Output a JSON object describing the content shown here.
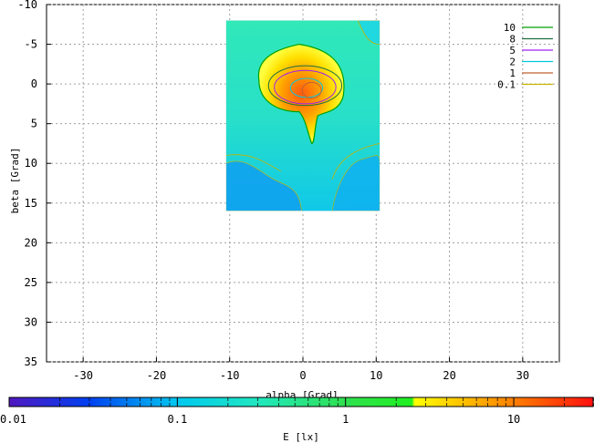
{
  "chart_data": {
    "type": "heatmap",
    "xlabel": "alpha [Grad]",
    "ylabel": "beta [Grad]",
    "xlim": [
      -35,
      35
    ],
    "ylim": [
      -10,
      35
    ],
    "y_inverted": true,
    "grid": true,
    "x_ticks": [
      "-30",
      "-20",
      "-10",
      "0",
      "10",
      "20",
      "30"
    ],
    "x_tick_values": [
      -30,
      -20,
      -10,
      0,
      10,
      20,
      30
    ],
    "y_ticks": [
      "-10",
      "-5",
      "0",
      "5",
      "10",
      "15",
      "20",
      "25",
      "30",
      "35"
    ],
    "y_tick_values": [
      -10,
      -5,
      0,
      5,
      10,
      15,
      20,
      25,
      30,
      35
    ],
    "heatmap_extent": {
      "x": [
        -10.5,
        10.5
      ],
      "y": [
        -8,
        16
      ]
    },
    "legend_position": "top-right",
    "contour_legend": [
      {
        "label": "10",
        "color": "#00a000"
      },
      {
        "label": "8",
        "color": "#207040"
      },
      {
        "label": "5",
        "color": "#a020f0"
      },
      {
        "label": "2",
        "color": "#00c8e0"
      },
      {
        "label": "1",
        "color": "#c06030"
      },
      {
        "label": "0.1",
        "color": "#c8b400"
      }
    ],
    "colorbar": {
      "label": "E [lx]",
      "scale": "log",
      "range": [
        0.01,
        30
      ],
      "ticks": [
        "0.01",
        "0.1",
        "1",
        "10"
      ],
      "tick_values": [
        0.01,
        0.1,
        1,
        10
      ],
      "color_stops": [
        {
          "value": 0.01,
          "color": "#5018c0"
        },
        {
          "value": 0.03,
          "color": "#0040f0"
        },
        {
          "value": 0.1,
          "color": "#00c8f0"
        },
        {
          "value": 0.3,
          "color": "#20e8c0"
        },
        {
          "value": 1,
          "color": "#30e050"
        },
        {
          "value": 2.5,
          "color": "#20f020"
        },
        {
          "value": 2.6,
          "color": "#ffff00"
        },
        {
          "value": 10,
          "color": "#ff8000"
        },
        {
          "value": 30,
          "color": "#ff1010"
        }
      ]
    }
  }
}
